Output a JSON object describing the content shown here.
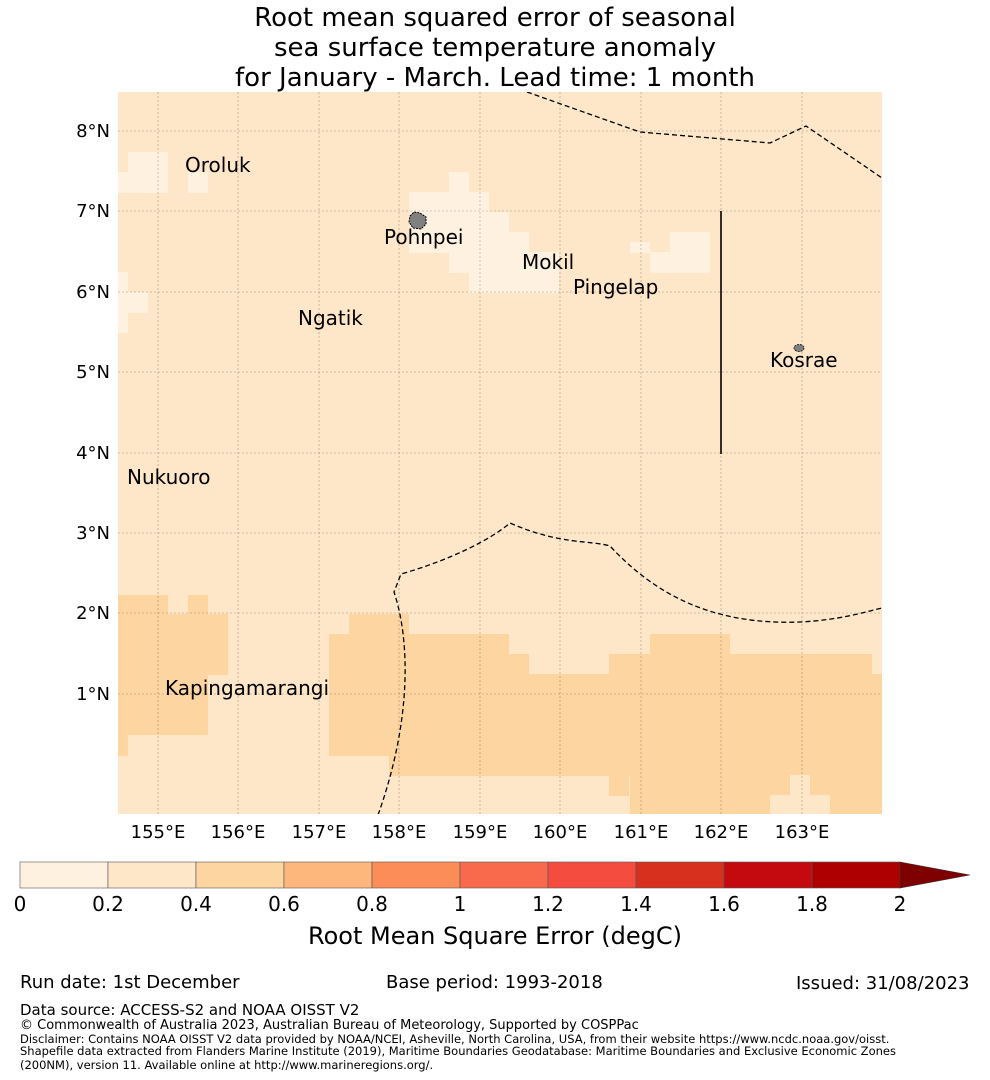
{
  "title": {
    "line1": "Root mean squared error of seasonal",
    "line2": "sea surface temperature anomaly",
    "line3": "for January - March. Lead time: 1 month"
  },
  "colors": {
    "ocean_base": "#fee6c8",
    "low": "#fff1df",
    "mid": "#fdd5a1",
    "land": "#808080"
  },
  "map": {
    "lon_ticks": [
      "155°E",
      "156°E",
      "157°E",
      "158°E",
      "159°E",
      "160°E",
      "161°E",
      "162°E",
      "163°E"
    ],
    "lat_ticks": [
      "8°N",
      "7°N",
      "6°N",
      "5°N",
      "4°N",
      "3°N",
      "2°N",
      "1°N"
    ],
    "places": [
      {
        "name": "Oroluk"
      },
      {
        "name": "Pohnpei"
      },
      {
        "name": "Mokil"
      },
      {
        "name": "Pingelap"
      },
      {
        "name": "Ngatik"
      },
      {
        "name": "Kosrae"
      },
      {
        "name": "Nukuoro"
      },
      {
        "name": "Kapingamarangi"
      }
    ]
  },
  "colorbar": {
    "title": "Root Mean Square Error (degC)",
    "ticks": [
      "0",
      "0.2",
      "0.4",
      "0.6",
      "0.8",
      "1",
      "1.2",
      "1.4",
      "1.6",
      "1.8",
      "2"
    ],
    "colors": [
      "#fff1df",
      "#fee6c8",
      "#fdd5a1",
      "#fdb77c",
      "#fc8d59",
      "#f9694c",
      "#f44d3f",
      "#d7301f",
      "#c4090f",
      "#af0000"
    ],
    "extend_color": "#7f0000"
  },
  "footer": {
    "run_date": "Run date: 1st December",
    "base_period": "Base period: 1993-2018",
    "issued": "Issued: 31/08/2023",
    "data_source": "Data source: ACCESS-S2 and NOAA OISST V2",
    "copyright": "© Commonwealth of Australia 2023, Australian Bureau of Meteorology, Supported by COSPPac",
    "disclaimer1": "Disclaimer: Contains NOAA OISST V2 data provided by NOAA/NCEI, Asheville, North Carolina, USA, from their website https://www.ncdc.noaa.gov/oisst.",
    "disclaimer2": "Shapefile data extracted from Flanders Marine Institute (2019), Maritime Boundaries Geodatabase: Maritime Boundaries and Exclusive Economic Zones",
    "disclaimer3": "(200NM), version 11. Available online at http://www.marineregions.org/."
  }
}
